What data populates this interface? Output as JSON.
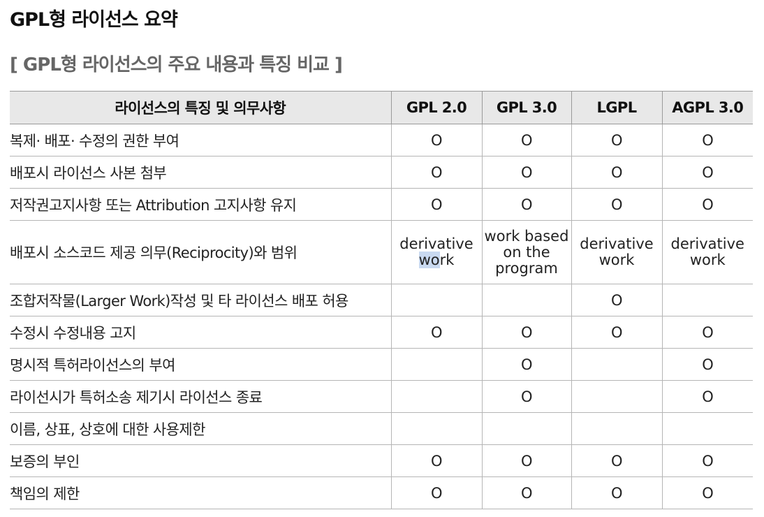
{
  "title": "GPL형 라이선스 요약",
  "subtitle": "[ GPL형 라이선스의 주요 내용과 특징 비교 ]",
  "table": {
    "headers": [
      "라이선스의 특징 및 의무사항",
      "GPL 2.0",
      "GPL 3.0",
      "LGPL",
      "AGPL 3.0"
    ],
    "rows": [
      {
        "feature": "복제· 배포· 수정의 권한 부여",
        "gpl2": "O",
        "gpl3": "O",
        "lgpl": "O",
        "agpl3": "O"
      },
      {
        "feature": "배포시 라이선스 사본 첨부",
        "gpl2": "O",
        "gpl3": "O",
        "lgpl": "O",
        "agpl3": "O"
      },
      {
        "feature": "저작권고지사항 또는 Attribution 고지사항 유지",
        "gpl2": "O",
        "gpl3": "O",
        "lgpl": "O",
        "agpl3": "O"
      },
      {
        "feature": "배포시 소스코드 제공 의무(Reciprocity)와 범위",
        "gpl2_line1": "derivative",
        "gpl2_line2a": "wo",
        "gpl2_line2b": "rk",
        "gpl3_line1": "work based",
        "gpl3_line2": "on the",
        "gpl3_line3": "program",
        "lgpl_line1": "derivative",
        "lgpl_line2": "work",
        "agpl3_line1": "derivative",
        "agpl3_line2": "work"
      },
      {
        "feature": "조합저작물(Larger Work)작성 및 타 라이선스 배포 허용",
        "gpl2": "",
        "gpl3": "",
        "lgpl": "O",
        "agpl3": ""
      },
      {
        "feature": "수정시 수정내용 고지",
        "gpl2": "O",
        "gpl3": "O",
        "lgpl": "O",
        "agpl3": "O"
      },
      {
        "feature": "명시적 특허라이선스의 부여",
        "gpl2": "",
        "gpl3": "O",
        "lgpl": "",
        "agpl3": "O"
      },
      {
        "feature": "라이선시가 특허소송 제기시 라이선스 종료",
        "gpl2": "",
        "gpl3": "O",
        "lgpl": "",
        "agpl3": "O"
      },
      {
        "feature": "이름, 상표, 상호에 대한 사용제한",
        "gpl2": "",
        "gpl3": "",
        "lgpl": "",
        "agpl3": ""
      },
      {
        "feature": "보증의 부인",
        "gpl2": "O",
        "gpl3": "O",
        "lgpl": "O",
        "agpl3": "O"
      },
      {
        "feature": "책임의 제한",
        "gpl2": "O",
        "gpl3": "O",
        "lgpl": "O",
        "agpl3": "O"
      }
    ]
  }
}
